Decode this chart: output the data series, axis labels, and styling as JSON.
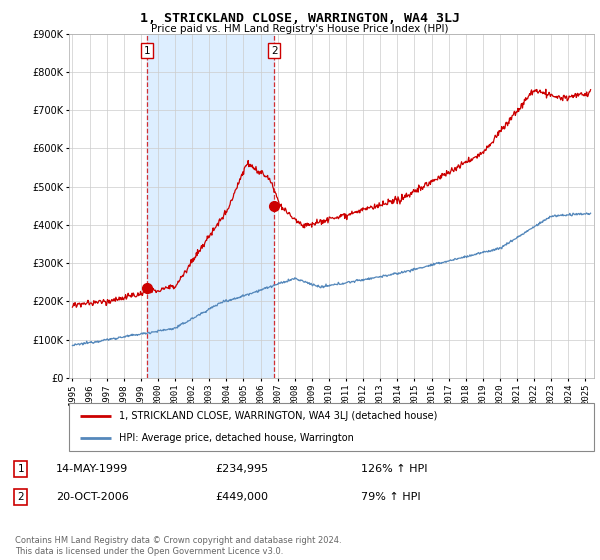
{
  "title": "1, STRICKLAND CLOSE, WARRINGTON, WA4 3LJ",
  "subtitle": "Price paid vs. HM Land Registry's House Price Index (HPI)",
  "ylim": [
    0,
    900000
  ],
  "yticks": [
    0,
    100000,
    200000,
    300000,
    400000,
    500000,
    600000,
    700000,
    800000,
    900000
  ],
  "sale1_date_num": 1999.37,
  "sale1_price": 234995,
  "sale2_date_num": 2006.8,
  "sale2_price": 449000,
  "red_line_color": "#cc0000",
  "blue_line_color": "#5588bb",
  "shade_color": "#ddeeff",
  "vline_color": "#cc0000",
  "grid_color": "#cccccc",
  "legend_label_red": "1, STRICKLAND CLOSE, WARRINGTON, WA4 3LJ (detached house)",
  "legend_label_blue": "HPI: Average price, detached house, Warrington",
  "transaction1_date": "14-MAY-1999",
  "transaction1_price": "£234,995",
  "transaction1_hpi": "126% ↑ HPI",
  "transaction2_date": "20-OCT-2006",
  "transaction2_price": "£449,000",
  "transaction2_hpi": "79% ↑ HPI",
  "footer": "Contains HM Land Registry data © Crown copyright and database right 2024.\nThis data is licensed under the Open Government Licence v3.0.",
  "xlim_start": 1994.8,
  "xlim_end": 2025.5
}
